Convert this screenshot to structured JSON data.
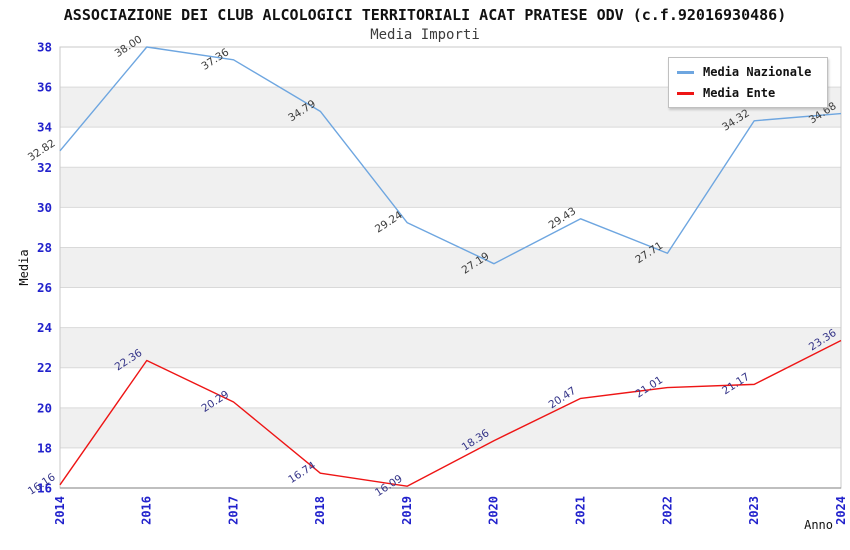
{
  "title": "ASSOCIAZIONE DEI CLUB ALCOLOGICI TERRITORIALI ACAT PRATESE ODV (c.f.92016930486)",
  "subtitle": "Media Importi",
  "legend": {
    "items": [
      {
        "label": "Media Nazionale",
        "color": "#6ea6e0"
      },
      {
        "label": "Media Ente",
        "color": "#ee1515"
      }
    ]
  },
  "chart_data": {
    "type": "line",
    "x": [
      "2014",
      "2016",
      "2017",
      "2018",
      "2019",
      "2020",
      "2021",
      "2022",
      "2023",
      "2024"
    ],
    "series": [
      {
        "name": "Media Nazionale",
        "color": "#6ea6e0",
        "label_color": "#3c3c3c",
        "values": [
          32.82,
          38.0,
          37.36,
          34.79,
          29.24,
          27.19,
          29.43,
          27.71,
          34.32,
          34.68
        ]
      },
      {
        "name": "Media Ente",
        "color": "#ee1515",
        "label_color": "#343488",
        "values": [
          16.16,
          22.36,
          20.29,
          16.74,
          16.09,
          18.36,
          20.47,
          21.01,
          21.17,
          23.36
        ]
      }
    ],
    "xlabel": "Anno",
    "ylabel": "Media",
    "ylim": [
      16,
      38
    ],
    "ytick_step": 2,
    "grid": true,
    "legend_position": "top-right",
    "band_colors": [
      "#ffffff",
      "#f0f0f0"
    ],
    "gridline_color": "#d9d9d9",
    "border_color": "#c8c8c8",
    "bottom_axis_color": "#999999",
    "tick_label_color": "#2222cc"
  }
}
